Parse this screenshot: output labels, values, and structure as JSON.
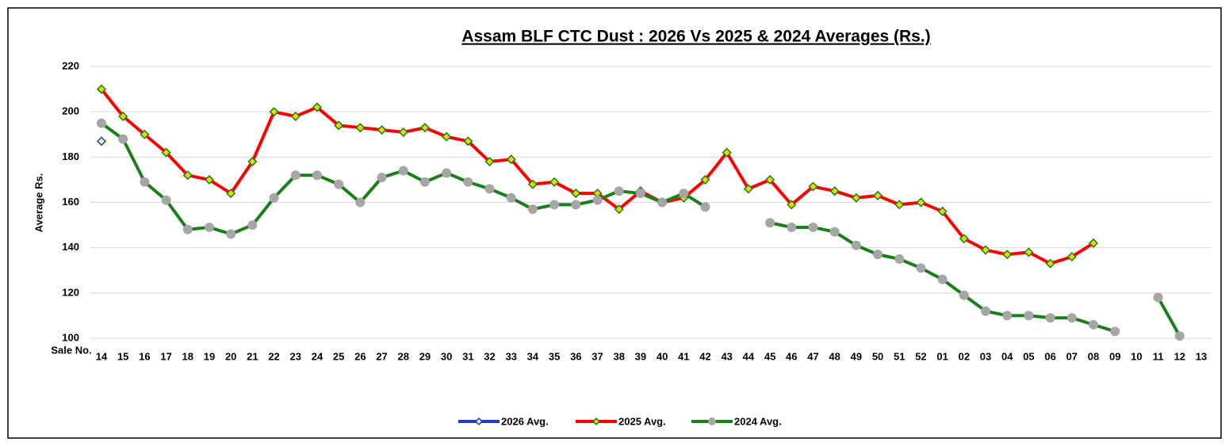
{
  "chart_data": {
    "type": "line",
    "title": "Assam BLF CTC Dust : 2026 Vs 2025 & 2024 Averages (Rs.)",
    "y_label": "Average Rs.",
    "x_label": "Sale No.",
    "categories": [
      "14",
      "15",
      "16",
      "17",
      "18",
      "19",
      "20",
      "21",
      "22",
      "23",
      "24",
      "25",
      "26",
      "27",
      "28",
      "29",
      "30",
      "31",
      "32",
      "33",
      "34",
      "35",
      "36",
      "37",
      "38",
      "39",
      "40",
      "41",
      "42",
      "43",
      "44",
      "45",
      "46",
      "47",
      "48",
      "49",
      "50",
      "51",
      "52",
      "01",
      "02",
      "03",
      "04",
      "05",
      "06",
      "07",
      "08",
      "09",
      "10",
      "11",
      "12",
      "13"
    ],
    "ylim": [
      100,
      220
    ],
    "yticks": [
      100,
      120,
      140,
      160,
      180,
      200,
      220
    ],
    "grid": true,
    "legend": "bottom",
    "series": [
      {
        "name": "2026 Avg.",
        "color": "#1f3fbf",
        "marker": "diamond",
        "marker_color": "#f5f0a0",
        "values": [
          187,
          null,
          null,
          null,
          null,
          null,
          null,
          null,
          null,
          null,
          null,
          null,
          null,
          null,
          null,
          null,
          null,
          null,
          null,
          null,
          null,
          null,
          null,
          null,
          null,
          null,
          null,
          null,
          null,
          null,
          null,
          null,
          null,
          null,
          null,
          null,
          null,
          null,
          null,
          null,
          null,
          null,
          null,
          null,
          null,
          null,
          null,
          null,
          null,
          null,
          null,
          null
        ]
      },
      {
        "name": "2025 Avg.",
        "color": "#ff0000",
        "marker": "diamond",
        "marker_color": "#e8d800",
        "values": [
          210,
          198,
          190,
          182,
          172,
          170,
          164,
          178,
          200,
          198,
          202,
          194,
          193,
          192,
          191,
          193,
          189,
          187,
          178,
          179,
          168,
          169,
          164,
          164,
          157,
          165,
          160,
          162,
          170,
          182,
          166,
          170,
          159,
          167,
          165,
          162,
          163,
          159,
          160,
          156,
          144,
          139,
          137,
          138,
          133,
          136,
          142,
          null,
          null,
          null,
          null,
          null
        ]
      },
      {
        "name": "2024 Avg.",
        "color": "#1a7f1a",
        "marker": "circle",
        "marker_color": "#a6a6a6",
        "values": [
          195,
          188,
          169,
          161,
          148,
          149,
          146,
          150,
          162,
          172,
          172,
          168,
          160,
          171,
          174,
          169,
          173,
          169,
          166,
          162,
          157,
          159,
          159,
          161,
          165,
          164,
          160,
          164,
          158,
          null,
          null,
          151,
          149,
          149,
          147,
          141,
          137,
          135,
          131,
          126,
          119,
          112,
          110,
          110,
          109,
          109,
          106,
          103,
          null,
          118,
          101,
          null
        ]
      }
    ]
  }
}
